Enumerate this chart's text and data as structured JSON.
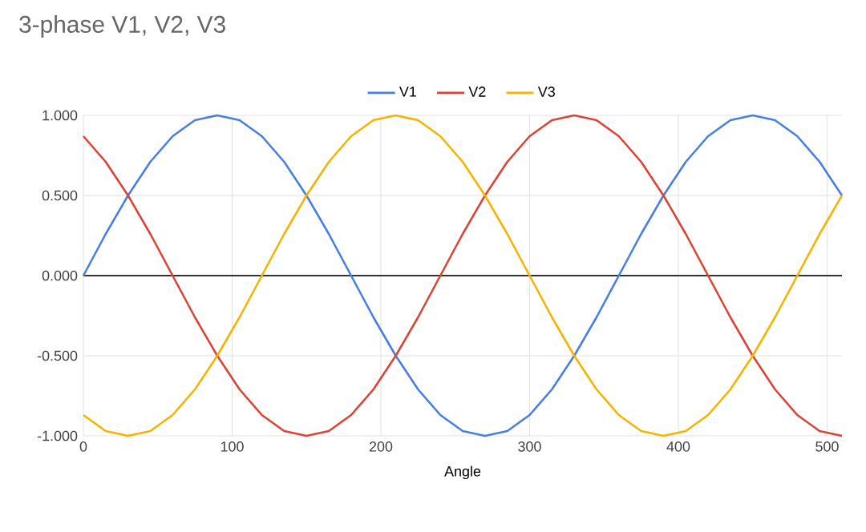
{
  "chart_data": {
    "type": "line",
    "title": "3-phase V1, V2, V3",
    "xlabel": "Angle",
    "x": [
      0,
      15,
      30,
      45,
      60,
      75,
      90,
      105,
      120,
      135,
      150,
      165,
      180,
      195,
      210,
      225,
      240,
      255,
      270,
      285,
      300,
      315,
      330,
      345,
      360,
      375,
      390,
      405,
      420,
      435,
      450,
      465,
      480,
      495,
      510
    ],
    "series": [
      {
        "name": "V1",
        "color": "#4a7fe0",
        "values": [
          0,
          0.26,
          0.5,
          0.71,
          0.87,
          0.97,
          1,
          0.97,
          0.87,
          0.71,
          0.5,
          0.26,
          0,
          -0.26,
          -0.5,
          -0.71,
          -0.87,
          -0.97,
          -1,
          -0.97,
          -0.87,
          -0.71,
          -0.5,
          -0.26,
          0,
          0.26,
          0.5,
          0.71,
          0.87,
          0.97,
          1,
          0.97,
          0.87,
          0.71,
          0.5
        ]
      },
      {
        "name": "V2",
        "color": "#db4437",
        "values": [
          0.87,
          0.71,
          0.5,
          0.26,
          0,
          -0.26,
          -0.5,
          -0.71,
          -0.87,
          -0.97,
          -1,
          -0.97,
          -0.87,
          -0.71,
          -0.5,
          -0.26,
          0,
          0.26,
          0.5,
          0.71,
          0.87,
          0.97,
          1,
          0.97,
          0.87,
          0.71,
          0.5,
          0.26,
          0,
          -0.26,
          -0.5,
          -0.71,
          -0.87,
          -0.97,
          -1
        ]
      },
      {
        "name": "V3",
        "color": "#f4b400",
        "values": [
          -0.87,
          -0.97,
          -1,
          -0.97,
          -0.87,
          -0.71,
          -0.5,
          -0.26,
          0,
          0.26,
          0.5,
          0.71,
          0.87,
          0.97,
          1,
          0.97,
          0.87,
          0.71,
          0.5,
          0.26,
          0,
          -0.26,
          -0.5,
          -0.71,
          -0.87,
          -0.97,
          -1,
          -0.97,
          -0.87,
          -0.71,
          -0.5,
          -0.26,
          0,
          0.26,
          0.5
        ]
      }
    ],
    "xlim": [
      0,
      510
    ],
    "ylim": [
      -1,
      1
    ],
    "xticks": [
      0,
      100,
      200,
      300,
      400,
      500
    ],
    "yticks": [
      {
        "value": -1,
        "label": "-1.000"
      },
      {
        "value": -0.5,
        "label": "-0.500"
      },
      {
        "value": 0,
        "label": "0.000"
      },
      {
        "value": 0.5,
        "label": "0.500"
      },
      {
        "value": 1,
        "label": "1.000"
      }
    ],
    "ref_lines": [
      {
        "axis": "y",
        "value": 0,
        "color": "#333333"
      }
    ],
    "grid": true,
    "legend": "top"
  }
}
